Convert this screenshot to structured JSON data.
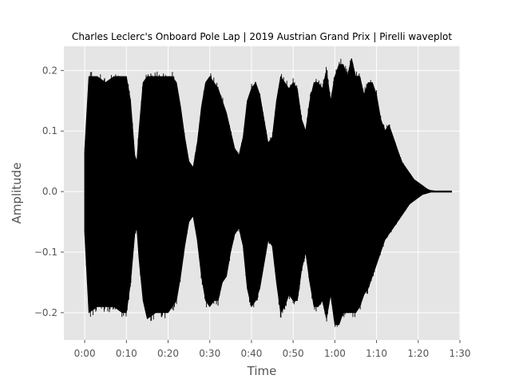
{
  "chart_data": {
    "type": "area",
    "title": "Charles Leclerc's Onboard Pole Lap | 2019 Austrian Grand Prix | Pirelli waveplot",
    "xlabel": "Time",
    "ylabel": "Amplitude",
    "xlim": [
      -5,
      90
    ],
    "ylim": [
      -0.245,
      0.24
    ],
    "grid": true,
    "background": "#e5e5e5",
    "wave_color": "#000000",
    "x_ticks": [
      0,
      10,
      20,
      30,
      40,
      50,
      60,
      70,
      80,
      90
    ],
    "x_tick_labels": [
      "0:00",
      "0:10",
      "0:20",
      "0:30",
      "0:40",
      "0:50",
      "1:00",
      "1:10",
      "1:20",
      "1:30"
    ],
    "y_ticks": [
      -0.2,
      -0.1,
      0.0,
      0.1,
      0.2
    ],
    "y_tick_labels": [
      "−0.2",
      "−0.1",
      "0.0",
      "0.1",
      "0.2"
    ],
    "series": [
      {
        "envelope": {
          "x": [
            0,
            1,
            3,
            5,
            7,
            9,
            10,
            11,
            12,
            12.5,
            13,
            14,
            15,
            17,
            19,
            20,
            21,
            22,
            23,
            24,
            25,
            26,
            27,
            28,
            29,
            30,
            31,
            32,
            33,
            34,
            35,
            36,
            37,
            38,
            39,
            40,
            41,
            42,
            43,
            44,
            45,
            46,
            47,
            48,
            49,
            50,
            51,
            52,
            53,
            54,
            55,
            56,
            57,
            58,
            59,
            60,
            61,
            62,
            63,
            64,
            65,
            66,
            67,
            68,
            69,
            70,
            71,
            72,
            73,
            74,
            75,
            76,
            77,
            78,
            79,
            80,
            81,
            82,
            82.5,
            83,
            84,
            85,
            86,
            87,
            88
          ],
          "upper": [
            0.07,
            0.19,
            0.19,
            0.18,
            0.19,
            0.19,
            0.19,
            0.15,
            0.06,
            0.05,
            0.1,
            0.18,
            0.19,
            0.19,
            0.19,
            0.19,
            0.19,
            0.18,
            0.14,
            0.09,
            0.05,
            0.04,
            0.08,
            0.14,
            0.18,
            0.19,
            0.18,
            0.17,
            0.15,
            0.13,
            0.1,
            0.07,
            0.06,
            0.09,
            0.15,
            0.17,
            0.18,
            0.16,
            0.12,
            0.08,
            0.09,
            0.15,
            0.19,
            0.18,
            0.17,
            0.18,
            0.17,
            0.12,
            0.1,
            0.15,
            0.18,
            0.18,
            0.17,
            0.2,
            0.15,
            0.19,
            0.21,
            0.21,
            0.19,
            0.22,
            0.19,
            0.19,
            0.16,
            0.18,
            0.18,
            0.16,
            0.12,
            0.1,
            0.11,
            0.09,
            0.07,
            0.05,
            0.04,
            0.03,
            0.02,
            0.015,
            0.01,
            0.005,
            0.003,
            0.002,
            0.001,
            0.001,
            0.001,
            0.001,
            0.001
          ],
          "lower": [
            -0.07,
            -0.2,
            -0.19,
            -0.19,
            -0.19,
            -0.2,
            -0.2,
            -0.15,
            -0.07,
            -0.06,
            -0.11,
            -0.18,
            -0.21,
            -0.2,
            -0.2,
            -0.2,
            -0.19,
            -0.18,
            -0.14,
            -0.09,
            -0.05,
            -0.04,
            -0.08,
            -0.14,
            -0.18,
            -0.19,
            -0.18,
            -0.18,
            -0.15,
            -0.14,
            -0.1,
            -0.07,
            -0.06,
            -0.09,
            -0.16,
            -0.19,
            -0.18,
            -0.16,
            -0.12,
            -0.08,
            -0.09,
            -0.15,
            -0.2,
            -0.19,
            -0.17,
            -0.18,
            -0.18,
            -0.13,
            -0.1,
            -0.15,
            -0.19,
            -0.19,
            -0.18,
            -0.21,
            -0.17,
            -0.22,
            -0.22,
            -0.2,
            -0.2,
            -0.2,
            -0.2,
            -0.19,
            -0.17,
            -0.16,
            -0.14,
            -0.12,
            -0.1,
            -0.08,
            -0.07,
            -0.06,
            -0.05,
            -0.04,
            -0.03,
            -0.02,
            -0.015,
            -0.01,
            -0.005,
            -0.003,
            -0.002,
            -0.001,
            -0.001,
            -0.001,
            -0.001,
            -0.001,
            -0.001
          ]
        }
      }
    ]
  }
}
